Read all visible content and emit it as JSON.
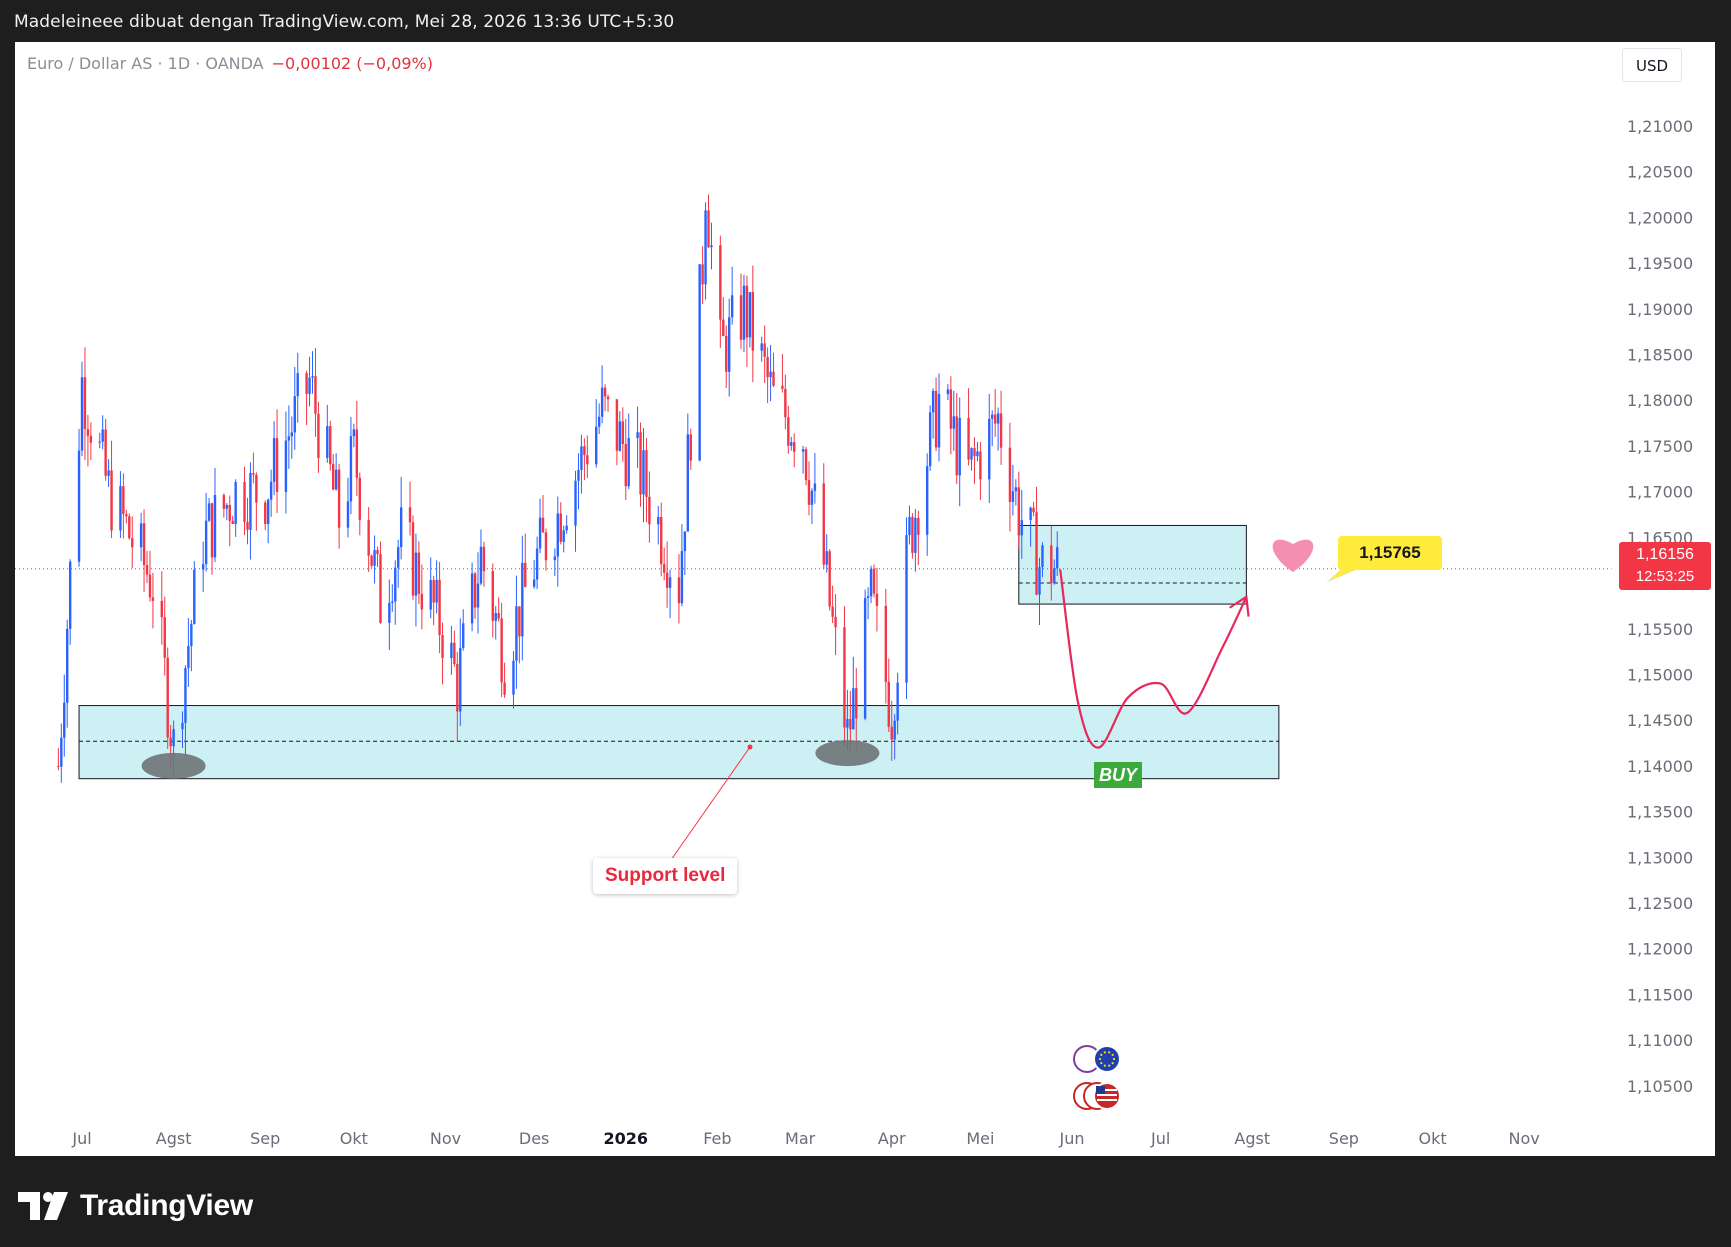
{
  "header": {
    "title": "Madeleineee dibuat dengan TradingView.com, Mei 28, 2026 13:36 UTC+5:30"
  },
  "legend": {
    "symbol": "Euro / Dollar AS · 1D · OANDA",
    "change": "−0,00102 (−0,09%)"
  },
  "currency_button": "USD",
  "annotations": {
    "support_label": "Support level",
    "buy_label": "BUY",
    "target_price": "1,15765",
    "last_price": "1,16156",
    "countdown": "12:53:25"
  },
  "footer": {
    "brand": "TradingView"
  },
  "colors": {
    "up": "#2962ff",
    "down": "#f23645",
    "zone_fill": "#cdf0f5",
    "arrow": "#e8285a",
    "heart": "#f48fb1",
    "marker": "#6e7375"
  },
  "chart_data": {
    "type": "candlestick",
    "symbol": "Euro / Dollar AS",
    "interval": "1D",
    "x_tick_labels": [
      "Jul",
      "Agst",
      "Sep",
      "Okt",
      "Nov",
      "Des",
      "2026",
      "Feb",
      "Mar",
      "Apr",
      "Mei",
      "Jun",
      "Jul",
      "Agst",
      "Sep",
      "Okt",
      "Nov"
    ],
    "y_tick_labels": [
      "1,21000",
      "1,20500",
      "1,20000",
      "1,19500",
      "1,19000",
      "1,18500",
      "1,18000",
      "1,17500",
      "1,17000",
      "1,16500",
      "1,15500",
      "1,15000",
      "1,14500",
      "1,14000",
      "1,13500",
      "1,13000",
      "1,12500",
      "1,12000",
      "1,11500",
      "1,11000",
      "1,10500"
    ],
    "y_ticks": [
      1.21,
      1.205,
      1.2,
      1.195,
      1.19,
      1.185,
      1.18,
      1.175,
      1.17,
      1.165,
      1.155,
      1.15,
      1.145,
      1.14,
      1.135,
      1.13,
      1.125,
      1.12,
      1.115,
      1.11,
      1.105
    ],
    "ylim": [
      1.1005,
      1.2118
    ],
    "last_price": 1.16156,
    "support_zone": {
      "low": 1.1386,
      "high": 1.1466,
      "mid": 1.1427,
      "start": "2025-06-30",
      "end": "2026-08-10"
    },
    "resistance_zone": {
      "low": 1.1577,
      "high": 1.1663,
      "mid": 1.16,
      "start": "2026-05-14",
      "end": "2026-07-30"
    },
    "target_price": 1.15765,
    "projected_path": [
      [
        "2026-05-28",
        1.1615
      ],
      [
        "2026-06-03",
        1.147
      ],
      [
        "2026-06-10",
        1.142
      ],
      [
        "2026-06-20",
        1.1475
      ],
      [
        "2026-07-01",
        1.149
      ],
      [
        "2026-07-10",
        1.1458
      ],
      [
        "2026-07-22",
        1.153
      ],
      [
        "2026-07-30",
        1.1585
      ]
    ],
    "pivot_markers": [
      [
        "2025-08-01",
        1.14
      ],
      [
        "2026-03-17",
        1.1414
      ]
    ],
    "ohlc_key_points": [
      [
        "2025-06-23",
        1.14
      ],
      [
        "2025-07-01",
        1.182
      ],
      [
        "2025-07-10",
        1.17
      ],
      [
        "2025-07-25",
        1.16
      ],
      [
        "2025-08-01",
        1.142
      ],
      [
        "2025-08-11",
        1.165
      ],
      [
        "2025-08-22",
        1.17
      ],
      [
        "2025-09-01",
        1.17
      ],
      [
        "2025-09-16",
        1.182
      ],
      [
        "2025-09-26",
        1.167
      ],
      [
        "2025-10-01",
        1.174
      ],
      [
        "2025-10-10",
        1.158
      ],
      [
        "2025-10-17",
        1.165
      ],
      [
        "2025-10-31",
        1.155
      ],
      [
        "2025-11-05",
        1.149
      ],
      [
        "2025-11-13",
        1.163
      ],
      [
        "2025-11-21",
        1.152
      ],
      [
        "2025-12-01",
        1.162
      ],
      [
        "2025-12-10",
        1.168
      ],
      [
        "2025-12-24",
        1.179
      ],
      [
        "2026-01-06",
        1.172
      ],
      [
        "2026-01-19",
        1.16
      ],
      [
        "2026-01-27",
        1.195
      ],
      [
        "2026-01-28",
        1.204
      ],
      [
        "2026-02-02",
        1.185
      ],
      [
        "2026-02-10",
        1.19
      ],
      [
        "2026-02-20",
        1.18
      ],
      [
        "2026-03-02",
        1.176
      ],
      [
        "2026-03-10",
        1.16
      ],
      [
        "2026-03-17",
        1.143
      ],
      [
        "2026-03-25",
        1.158
      ],
      [
        "2026-04-01",
        1.146
      ],
      [
        "2026-04-07",
        1.165
      ],
      [
        "2026-04-17",
        1.18
      ],
      [
        "2026-04-27",
        1.172
      ],
      [
        "2026-05-07",
        1.178
      ],
      [
        "2026-05-14",
        1.168
      ],
      [
        "2026-05-21",
        1.162
      ],
      [
        "2026-05-28",
        1.1616
      ]
    ]
  }
}
